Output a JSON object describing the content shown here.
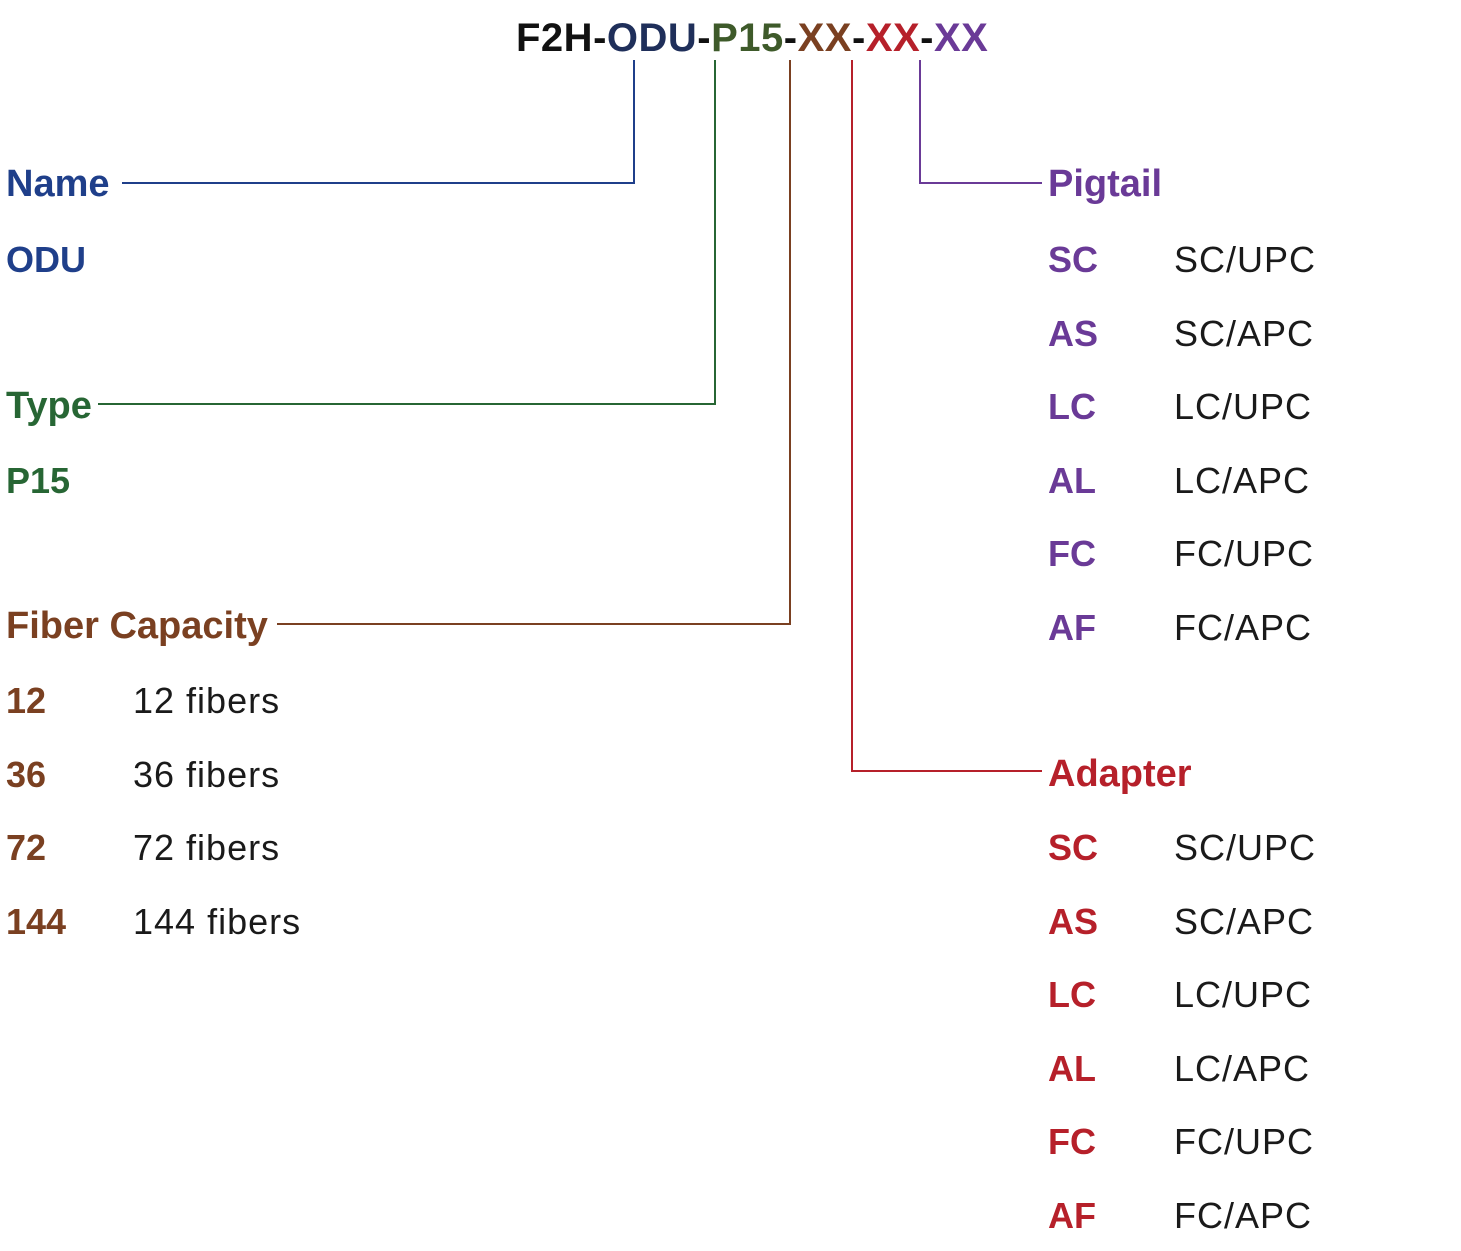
{
  "colors": {
    "black": "#111111",
    "name": "#1f3f8a",
    "type": "#276634",
    "fiber": "#7a4021",
    "adapter": "#b6202a",
    "pigtail": "#6a3a97",
    "odu_code": "#1f2f5a",
    "p15_code": "#3e5a2a"
  },
  "code": {
    "part1": "F2H",
    "sep1": "-",
    "part2": "ODU",
    "sep2": "-",
    "part3": "P15",
    "sep3": "-",
    "part4": "XX",
    "sep4": "-",
    "part5": "XX",
    "sep5": "-",
    "part6": "XX"
  },
  "name": {
    "heading": "Name",
    "value": "ODU"
  },
  "type": {
    "heading": "Type",
    "value": "P15"
  },
  "fiber_capacity": {
    "heading": "Fiber Capacity",
    "items": [
      {
        "code": "12",
        "desc": "12 fibers"
      },
      {
        "code": "36",
        "desc": "36 fibers"
      },
      {
        "code": "72",
        "desc": "72 fibers"
      },
      {
        "code": "144",
        "desc": "144 fibers"
      }
    ]
  },
  "pigtail": {
    "heading": "Pigtail",
    "items": [
      {
        "code": "SC",
        "desc": "SC/UPC"
      },
      {
        "code": "AS",
        "desc": "SC/APC"
      },
      {
        "code": "LC",
        "desc": "LC/UPC"
      },
      {
        "code": "AL",
        "desc": "LC/APC"
      },
      {
        "code": "FC",
        "desc": "FC/UPC"
      },
      {
        "code": "AF",
        "desc": "FC/APC"
      }
    ]
  },
  "adapter": {
    "heading": "Adapter",
    "items": [
      {
        "code": "SC",
        "desc": "SC/UPC"
      },
      {
        "code": "AS",
        "desc": "SC/APC"
      },
      {
        "code": "LC",
        "desc": "LC/UPC"
      },
      {
        "code": "AL",
        "desc": "LC/APC"
      },
      {
        "code": "FC",
        "desc": "FC/UPC"
      },
      {
        "code": "AF",
        "desc": "FC/APC"
      }
    ]
  }
}
